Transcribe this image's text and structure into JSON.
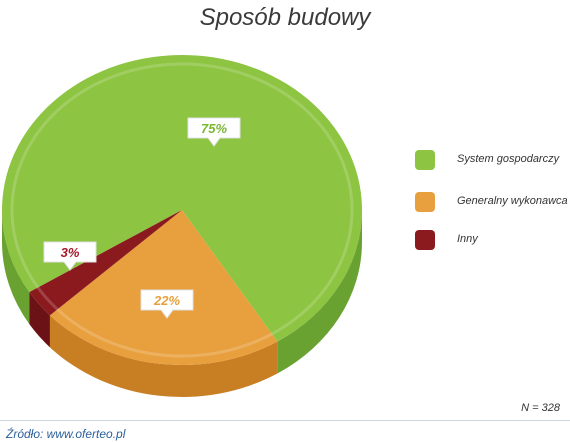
{
  "chart_data": {
    "type": "pie",
    "title": "Sposób budowy",
    "slices": [
      {
        "name": "System gospodarczy",
        "value": 75,
        "label": "75%",
        "color": "#8dc441",
        "color_dark": "#6aa232",
        "label_color": "#7ab833"
      },
      {
        "name": "Generalny wykonawca",
        "value": 22,
        "label": "22%",
        "color": "#e8a03e",
        "color_dark": "#c87f24",
        "label_color": "#e8a03e"
      },
      {
        "name": "Inny",
        "value": 3,
        "label": "3%",
        "color": "#8b1a1f",
        "color_dark": "#6a1216",
        "label_color": "#a8192a"
      }
    ],
    "note": "N = 328"
  },
  "footer": {
    "source": "Źródło: www.oferteo.pl"
  }
}
